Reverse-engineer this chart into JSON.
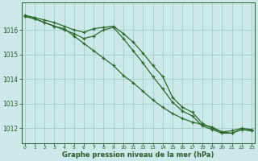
{
  "x": [
    0,
    1,
    2,
    3,
    4,
    5,
    6,
    7,
    8,
    9,
    10,
    11,
    12,
    13,
    14,
    15,
    16,
    17,
    18,
    19,
    20,
    21,
    22,
    23
  ],
  "line1": [
    1016.6,
    1016.5,
    1016.4,
    1016.3,
    1016.15,
    1016.0,
    1015.9,
    1016.05,
    1016.1,
    1016.15,
    1015.85,
    1015.5,
    1015.05,
    1014.55,
    1014.1,
    1013.25,
    1012.85,
    1012.65,
    1012.2,
    1012.0,
    1011.85,
    1011.9,
    1012.0,
    1011.95
  ],
  "line2": [
    1016.55,
    1016.45,
    1016.3,
    1016.15,
    1016.0,
    1015.85,
    1015.65,
    1015.75,
    1016.0,
    1016.1,
    1015.65,
    1015.15,
    1014.65,
    1014.1,
    1013.6,
    1013.05,
    1012.7,
    1012.5,
    1012.1,
    1011.95,
    1011.8,
    1011.8,
    1011.95,
    1011.9
  ],
  "line3": [
    1016.55,
    1016.45,
    1016.3,
    1016.15,
    1016.05,
    1015.75,
    1015.45,
    1015.15,
    1014.85,
    1014.55,
    1014.15,
    1013.85,
    1013.5,
    1013.15,
    1012.85,
    1012.6,
    1012.4,
    1012.25,
    1012.15,
    1012.05,
    1011.85,
    1011.8,
    1011.95,
    1011.9
  ],
  "line_color": "#2d6a2d",
  "bg_color": "#cce8e8",
  "grid_color": "#aacfcf",
  "xlabel": "Graphe pression niveau de la mer (hPa)",
  "xlabel_color": "#2d5a2d",
  "tick_color": "#2d5a2d",
  "ylim": [
    1011.4,
    1017.1
  ],
  "yticks": [
    1012,
    1013,
    1014,
    1015,
    1016
  ],
  "xticks": [
    0,
    1,
    2,
    3,
    4,
    5,
    6,
    7,
    8,
    9,
    10,
    11,
    12,
    13,
    14,
    15,
    16,
    17,
    18,
    19,
    20,
    21,
    22,
    23
  ],
  "marker": "+",
  "markersize": 3.5,
  "linewidth": 0.9
}
